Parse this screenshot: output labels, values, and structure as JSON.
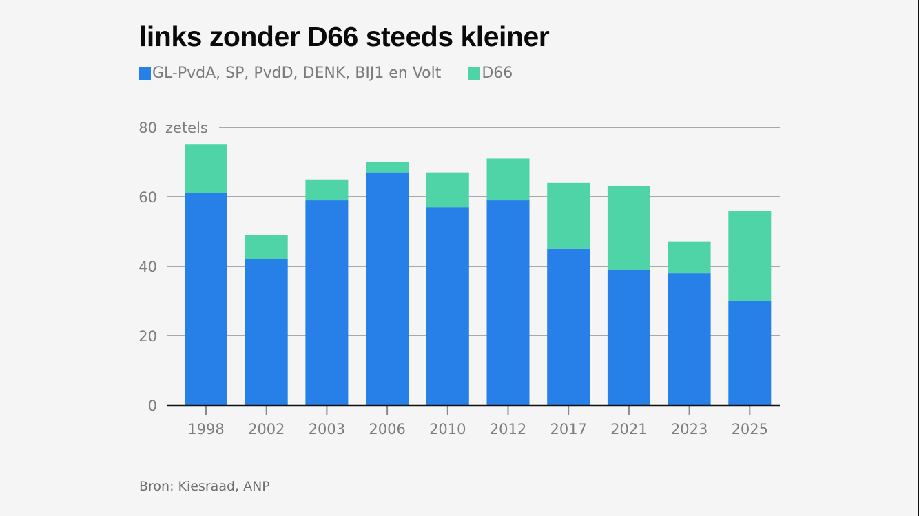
{
  "title": "links zonder D66 steeds kleiner",
  "legend": [
    {
      "label": "GL-PvdA, SP, PvdD, DENK, BIJ1 en Volt",
      "color": "#2680e8"
    },
    {
      "label": "D66",
      "color": "#4fd4a8"
    }
  ],
  "source": "Bron: Kiesraad, ANP",
  "chart_data": {
    "type": "bar",
    "stacked": true,
    "title": "links zonder D66 steeds kleiner",
    "xlabel": "",
    "ylabel": "zetels",
    "unit_label": "zetels",
    "categories": [
      "1998",
      "2002",
      "2003",
      "2006",
      "2010",
      "2012",
      "2017",
      "2021",
      "2023",
      "2025"
    ],
    "series": [
      {
        "name": "GL-PvdA, SP, PvdD, DENK, BIJ1 en Volt",
        "color": "#2680e8",
        "values": [
          61,
          42,
          59,
          67,
          57,
          59,
          45,
          39,
          38,
          30
        ]
      },
      {
        "name": "D66",
        "color": "#4fd4a8",
        "values": [
          14,
          7,
          6,
          3,
          10,
          12,
          19,
          24,
          9,
          26
        ]
      }
    ],
    "ylim": [
      0,
      80
    ],
    "yticks": [
      0,
      20,
      40,
      60,
      80
    ],
    "grid": true,
    "legend_position": "top-left"
  }
}
